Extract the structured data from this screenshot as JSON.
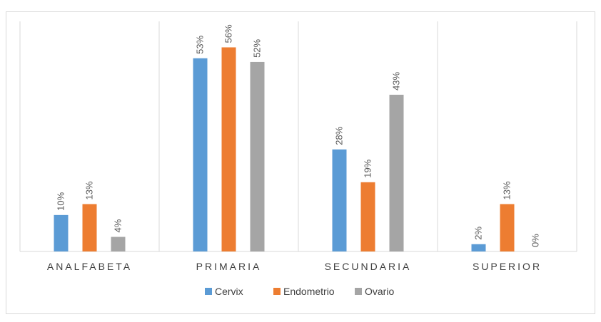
{
  "chart_data": {
    "type": "bar",
    "categories": [
      "ANALFABETA",
      "PRIMARIA",
      "SECUNDARIA",
      "SUPERIOR"
    ],
    "series": [
      {
        "name": "Cervix",
        "values": [
          10,
          53,
          28,
          2
        ],
        "labels": [
          "10%",
          "53%",
          "28%",
          "2%"
        ],
        "color": "#5b9bd5"
      },
      {
        "name": "Endometrio",
        "values": [
          13,
          56,
          19,
          13
        ],
        "labels": [
          "13%",
          "56%",
          "19%",
          "13%"
        ],
        "color": "#ed7d31"
      },
      {
        "name": "Ovario",
        "values": [
          4,
          52,
          43,
          0
        ],
        "labels": [
          "4%",
          "52%",
          "43%",
          "0%"
        ],
        "color": "#a5a5a5"
      }
    ],
    "title": "",
    "xlabel": "",
    "ylabel": "",
    "ylim": [
      0,
      60
    ],
    "grid": false,
    "legend_position": "bottom"
  }
}
